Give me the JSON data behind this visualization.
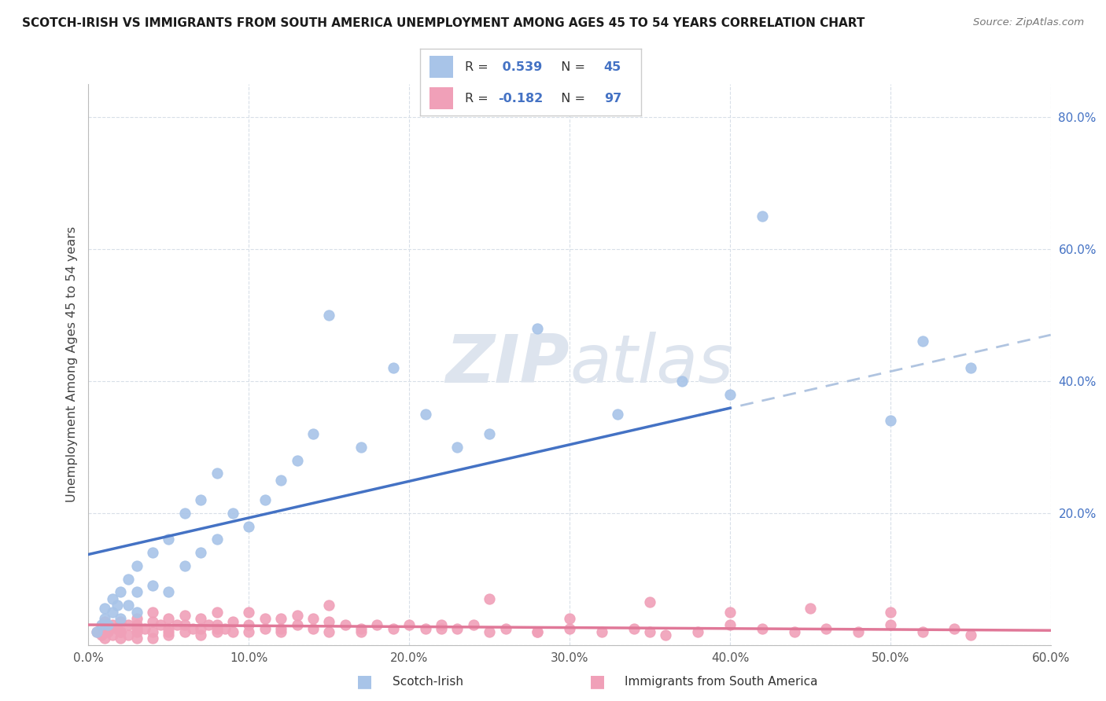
{
  "title": "SCOTCH-IRISH VS IMMIGRANTS FROM SOUTH AMERICA UNEMPLOYMENT AMONG AGES 45 TO 54 YEARS CORRELATION CHART",
  "source": "Source: ZipAtlas.com",
  "ylabel": "Unemployment Among Ages 45 to 54 years",
  "xlim": [
    0.0,
    0.6
  ],
  "ylim": [
    0.0,
    0.85
  ],
  "blue_R": 0.539,
  "blue_N": 45,
  "pink_R": -0.182,
  "pink_N": 97,
  "blue_color": "#a8c4e8",
  "pink_color": "#f0a0b8",
  "blue_line_color": "#4472c4",
  "pink_line_color": "#e07898",
  "blue_dash_color": "#b0c4e0",
  "legend_label_blue": "Scotch-Irish",
  "legend_label_pink": "Immigrants from South America",
  "blue_scatter_x": [
    0.005,
    0.008,
    0.01,
    0.01,
    0.012,
    0.015,
    0.015,
    0.018,
    0.02,
    0.02,
    0.025,
    0.025,
    0.03,
    0.03,
    0.03,
    0.04,
    0.04,
    0.05,
    0.05,
    0.06,
    0.06,
    0.07,
    0.07,
    0.08,
    0.08,
    0.09,
    0.1,
    0.11,
    0.12,
    0.13,
    0.14,
    0.15,
    0.17,
    0.19,
    0.21,
    0.23,
    0.25,
    0.28,
    0.33,
    0.37,
    0.4,
    0.42,
    0.5,
    0.52,
    0.55
  ],
  "blue_scatter_y": [
    0.02,
    0.03,
    0.04,
    0.055,
    0.03,
    0.05,
    0.07,
    0.06,
    0.04,
    0.08,
    0.06,
    0.1,
    0.05,
    0.08,
    0.12,
    0.09,
    0.14,
    0.08,
    0.16,
    0.12,
    0.2,
    0.14,
    0.22,
    0.16,
    0.26,
    0.2,
    0.18,
    0.22,
    0.25,
    0.28,
    0.32,
    0.5,
    0.3,
    0.42,
    0.35,
    0.3,
    0.32,
    0.48,
    0.35,
    0.4,
    0.38,
    0.65,
    0.34,
    0.46,
    0.42
  ],
  "pink_scatter_x": [
    0.005,
    0.008,
    0.01,
    0.01,
    0.01,
    0.012,
    0.015,
    0.015,
    0.018,
    0.02,
    0.02,
    0.02,
    0.025,
    0.025,
    0.03,
    0.03,
    0.03,
    0.03,
    0.035,
    0.04,
    0.04,
    0.04,
    0.04,
    0.045,
    0.05,
    0.05,
    0.05,
    0.055,
    0.06,
    0.06,
    0.06,
    0.065,
    0.07,
    0.07,
    0.07,
    0.075,
    0.08,
    0.08,
    0.08,
    0.085,
    0.09,
    0.09,
    0.1,
    0.1,
    0.1,
    0.11,
    0.11,
    0.12,
    0.12,
    0.13,
    0.13,
    0.14,
    0.14,
    0.15,
    0.15,
    0.16,
    0.17,
    0.18,
    0.19,
    0.2,
    0.21,
    0.22,
    0.23,
    0.24,
    0.25,
    0.26,
    0.28,
    0.3,
    0.3,
    0.32,
    0.34,
    0.35,
    0.38,
    0.4,
    0.4,
    0.42,
    0.44,
    0.46,
    0.48,
    0.5,
    0.5,
    0.52,
    0.54,
    0.55,
    0.36,
    0.28,
    0.22,
    0.17,
    0.12,
    0.08,
    0.05,
    0.03,
    0.02,
    0.15,
    0.25,
    0.35,
    0.45
  ],
  "pink_scatter_y": [
    0.02,
    0.015,
    0.01,
    0.025,
    0.035,
    0.02,
    0.015,
    0.03,
    0.025,
    0.01,
    0.02,
    0.035,
    0.015,
    0.03,
    0.01,
    0.02,
    0.03,
    0.04,
    0.025,
    0.01,
    0.02,
    0.035,
    0.05,
    0.03,
    0.015,
    0.025,
    0.04,
    0.03,
    0.02,
    0.03,
    0.045,
    0.025,
    0.015,
    0.025,
    0.04,
    0.03,
    0.02,
    0.03,
    0.05,
    0.025,
    0.02,
    0.035,
    0.02,
    0.03,
    0.05,
    0.025,
    0.04,
    0.02,
    0.04,
    0.03,
    0.045,
    0.025,
    0.04,
    0.02,
    0.035,
    0.03,
    0.025,
    0.03,
    0.025,
    0.03,
    0.025,
    0.03,
    0.025,
    0.03,
    0.02,
    0.025,
    0.02,
    0.025,
    0.04,
    0.02,
    0.025,
    0.02,
    0.02,
    0.03,
    0.05,
    0.025,
    0.02,
    0.025,
    0.02,
    0.03,
    0.05,
    0.02,
    0.025,
    0.015,
    0.015,
    0.02,
    0.025,
    0.02,
    0.025,
    0.025,
    0.02,
    0.025,
    0.02,
    0.06,
    0.07,
    0.065,
    0.055
  ],
  "background_color": "#ffffff",
  "grid_color": "#d8dfe8",
  "watermark_color": "#dde4ee"
}
